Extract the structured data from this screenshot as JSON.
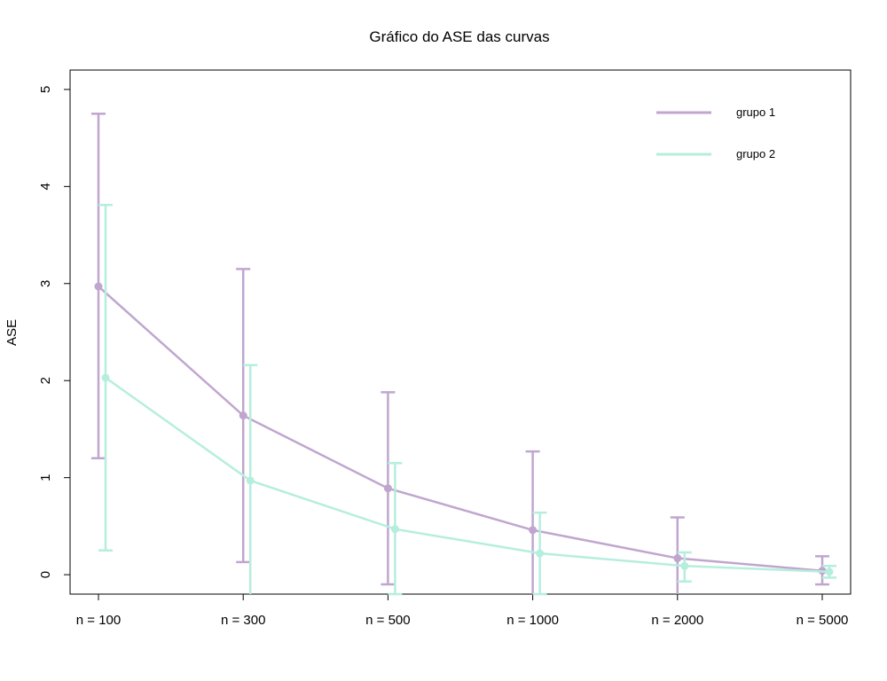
{
  "chart_data": {
    "type": "line",
    "title": "Gráfico do ASE das curvas",
    "xlabel": "",
    "ylabel": "ASE",
    "categories": [
      "n = 100",
      "n = 300",
      "n = 500",
      "n = 1000",
      "n = 2000",
      "n = 5000"
    ],
    "ylim": [
      -0.2,
      5.2
    ],
    "yticks": [
      "0",
      "1",
      "2",
      "3",
      "4",
      "5"
    ],
    "grid": false,
    "legend_position": "top-right",
    "series": [
      {
        "name": "grupo 1",
        "color": "#c0a6cf",
        "values": [
          2.97,
          1.64,
          0.89,
          0.46,
          0.17,
          0.04
        ],
        "lower": [
          1.2,
          0.13,
          -0.1,
          -0.35,
          -0.25,
          -0.1
        ],
        "upper": [
          4.75,
          3.15,
          1.88,
          1.27,
          0.59,
          0.19
        ]
      },
      {
        "name": "grupo 2",
        "color": "#b6eedd",
        "values": [
          2.03,
          0.97,
          0.47,
          0.22,
          0.09,
          0.03
        ],
        "lower": [
          0.25,
          -0.22,
          -0.2,
          -0.2,
          -0.07,
          -0.03
        ],
        "upper": [
          3.81,
          2.16,
          1.15,
          0.64,
          0.23,
          0.09
        ]
      }
    ]
  }
}
